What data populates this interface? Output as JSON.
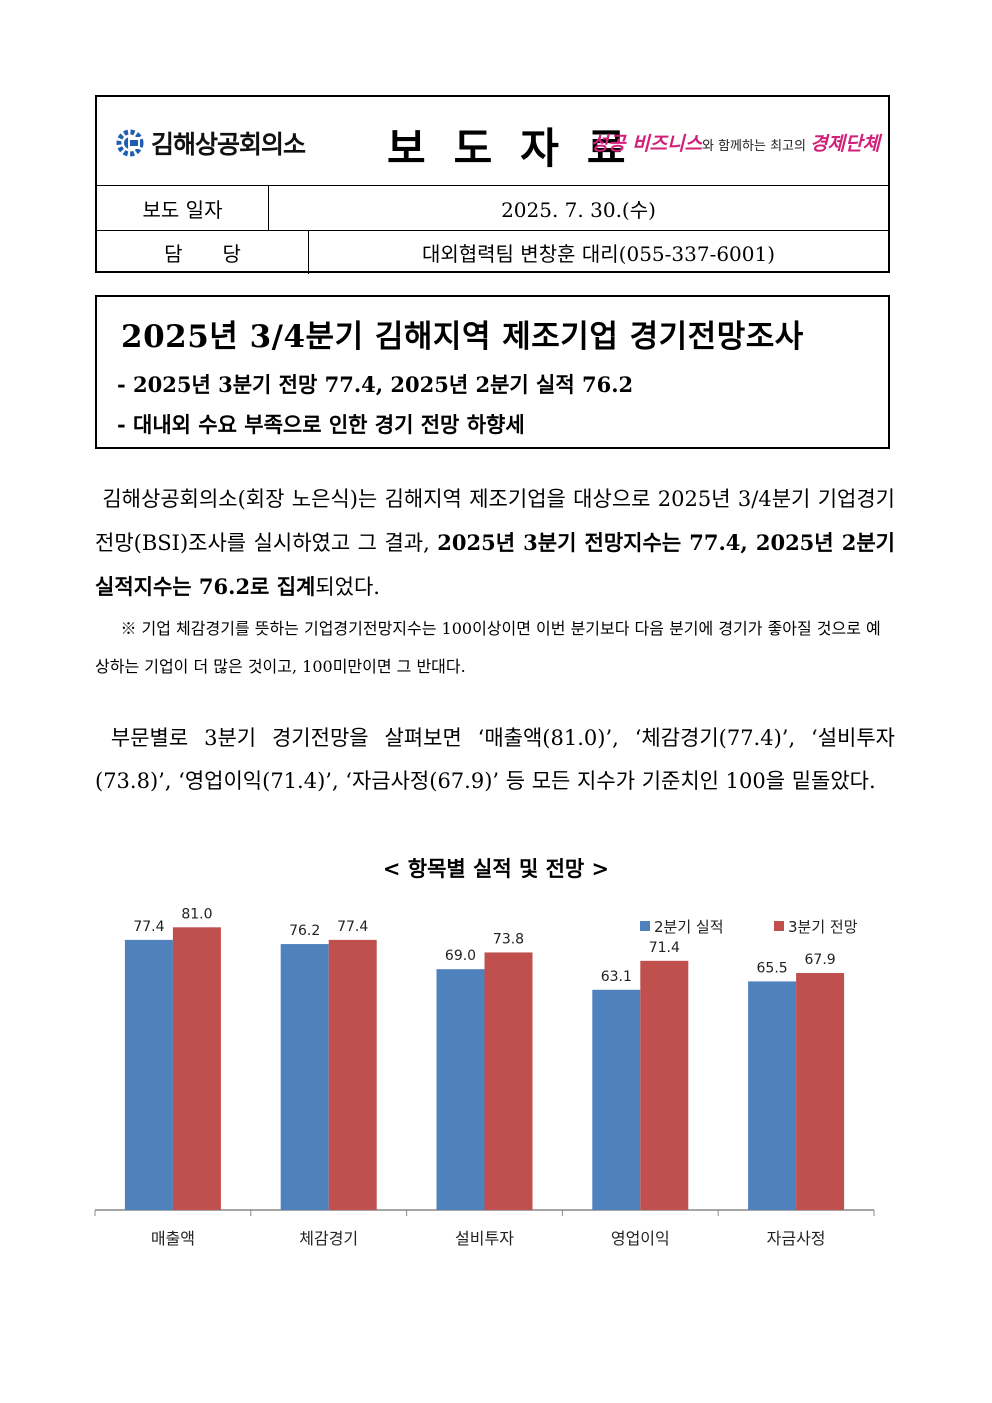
{
  "header": {
    "org_name": "김해상공회의소",
    "doc_type": "보도자료",
    "slogan_part1": "성공 비즈니스",
    "slogan_part2": "와 함께하는 최고의 ",
    "slogan_part3": "경제단체",
    "rows": [
      {
        "key": "보도 일자",
        "value": "2025. 7. 30.(수)"
      },
      {
        "key": "담당",
        "value": "대외협력팀 변창훈 대리(055-337-6001)"
      }
    ]
  },
  "title_box": {
    "title": "2025년 3/4분기 김해지역 제조기업 경기전망조사",
    "sub1": "- 2025년 3분기 전망 77.4, 2025년 2분기 실적 76.2",
    "sub2": "- 대내외 수요 부족으로 인한 경기 전망 하향세"
  },
  "body": {
    "p1_a": "김해상공회의소(회장 노은식)는 김해지역 제조기업을 대상으로 2025년 3/4분기 기업경기전망(BSI)조사를 실시하였고 그 결과, ",
    "p1_b": "2025년 3분기 전망지수는 77.4, 2025년 2분기 실적지수는 76.2로 집계",
    "p1_c": "되었다.",
    "note": "※ 기업 체감경기를 뜻하는 기업경기전망지수는 100이상이면 이번 분기보다 다음 분기에 경기가 좋아질 것으로 예상하는 기업이 더 많은 것이고, 100미만이면 그 반대다.",
    "p2": "부문별로 3분기 경기전망을 살펴보면 ‘매출액(81.0)’, ‘체감경기(77.4)’, ‘설비투자(73.8)’, ‘영업이익(71.4)’, ‘자금사정(67.9)’ 등 모든 지수가 기준치인 100을 밑돌았다.",
    "chart_caption": "< 항목별 실적 및 전망 >"
  },
  "chart_data": {
    "type": "bar",
    "title": "",
    "categories": [
      "매출액",
      "체감경기",
      "설비투자",
      "영업이익",
      "자금사정"
    ],
    "series": [
      {
        "name": "2분기 실적",
        "values": [
          77.4,
          76.2,
          69.0,
          63.1,
          65.5
        ],
        "color": "#4f81bd"
      },
      {
        "name": "3분기 전망",
        "values": [
          81.0,
          77.4,
          73.8,
          71.4,
          67.9
        ],
        "color": "#c0504d"
      }
    ],
    "data_labels": true,
    "legend": "top-right",
    "grid": false
  }
}
